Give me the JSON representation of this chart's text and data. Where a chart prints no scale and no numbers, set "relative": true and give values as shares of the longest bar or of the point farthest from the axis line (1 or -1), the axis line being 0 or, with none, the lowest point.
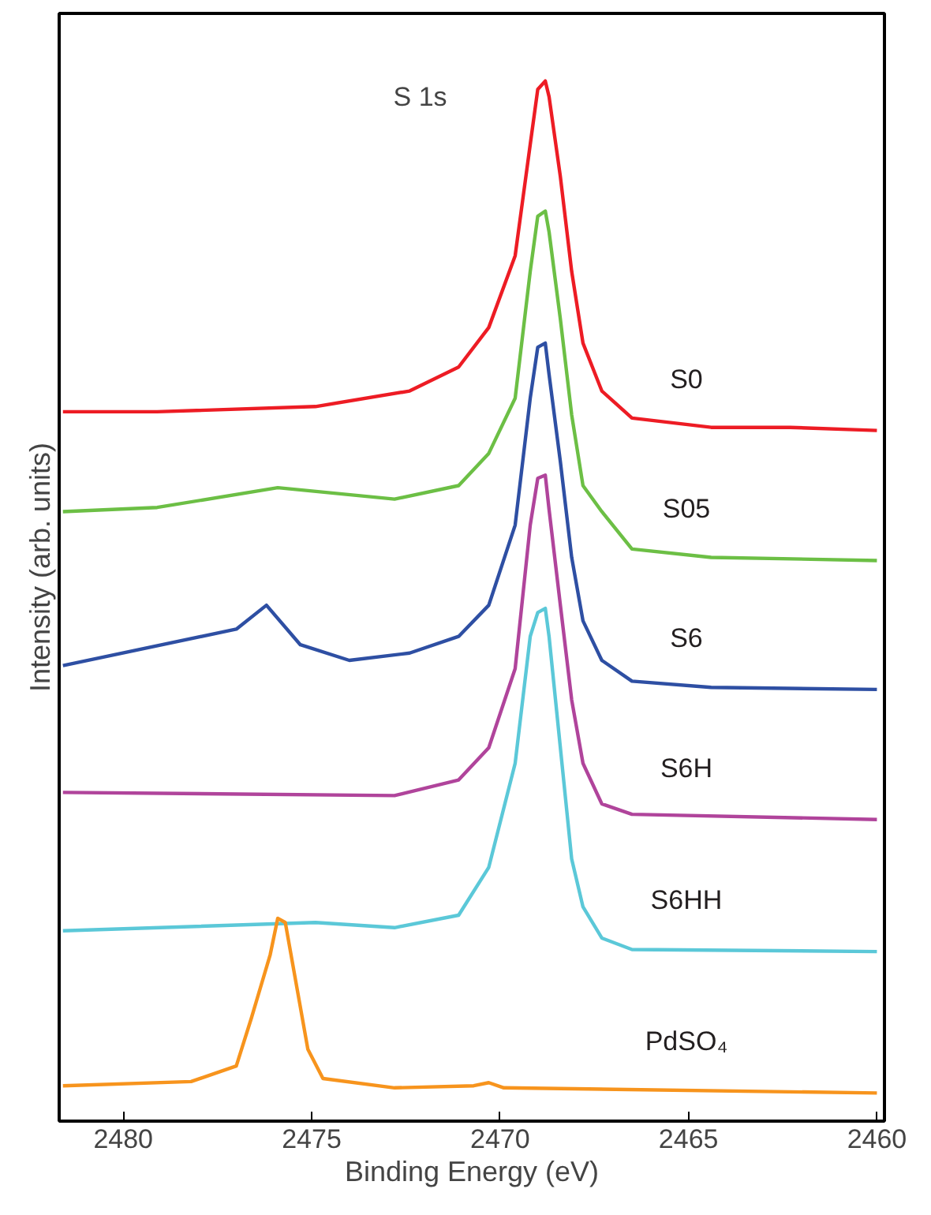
{
  "chart_data": {
    "type": "line",
    "relative": true,
    "xlabel": "Binding Energy (eV)",
    "ylabel": "Intensity (arb. units)",
    "xlim": [
      2481.7,
      2459.8
    ],
    "xticks": [
      2480,
      2475,
      2470,
      2465,
      2460
    ],
    "grid": false,
    "marker": "none",
    "line_style": "solid",
    "annotations": [
      "S 1s"
    ],
    "series": [
      {
        "name": "S0",
        "color": "#ed1c24",
        "x": [
          2481.6,
          2479.1,
          2474.9,
          2472.4,
          2471.1,
          2470.3,
          2469.6,
          2469.2,
          2469.0,
          2468.8,
          2468.7,
          2468.4,
          2468.1,
          2467.8,
          2467.3,
          2466.5,
          2464.4,
          2462.3,
          2460.0
        ],
        "values": [
          0.682,
          0.682,
          0.687,
          0.702,
          0.725,
          0.763,
          0.832,
          0.939,
          0.992,
          1.0,
          0.985,
          0.908,
          0.817,
          0.748,
          0.702,
          0.676,
          0.667,
          0.667,
          0.664
        ]
      },
      {
        "name": "S05",
        "color": "#6cbf45",
        "x": [
          2481.6,
          2479.1,
          2475.9,
          2472.8,
          2471.1,
          2470.3,
          2469.6,
          2469.2,
          2469.0,
          2468.8,
          2468.7,
          2468.4,
          2468.1,
          2467.8,
          2467.3,
          2466.5,
          2464.4,
          2460.0
        ],
        "values": [
          0.586,
          0.59,
          0.609,
          0.598,
          0.611,
          0.642,
          0.695,
          0.817,
          0.87,
          0.875,
          0.855,
          0.771,
          0.679,
          0.611,
          0.586,
          0.55,
          0.542,
          0.539
        ]
      },
      {
        "name": "S6",
        "color": "#2e4fa3",
        "x": [
          2481.6,
          2477.0,
          2476.2,
          2475.3,
          2474.0,
          2472.4,
          2471.1,
          2470.3,
          2469.6,
          2469.2,
          2469.0,
          2468.8,
          2468.7,
          2468.4,
          2468.1,
          2467.8,
          2467.3,
          2466.5,
          2464.4,
          2460.0
        ],
        "values": [
          0.438,
          0.473,
          0.496,
          0.458,
          0.443,
          0.45,
          0.466,
          0.496,
          0.573,
          0.695,
          0.744,
          0.748,
          0.718,
          0.634,
          0.542,
          0.481,
          0.443,
          0.423,
          0.417,
          0.415
        ]
      },
      {
        "name": "S6H",
        "color": "#b0449b",
        "x": [
          2481.6,
          2472.8,
          2471.1,
          2470.3,
          2469.6,
          2469.2,
          2469.0,
          2468.8,
          2468.7,
          2468.4,
          2468.1,
          2467.8,
          2467.3,
          2466.5,
          2460.0
        ],
        "values": [
          0.316,
          0.313,
          0.328,
          0.359,
          0.435,
          0.573,
          0.618,
          0.621,
          0.588,
          0.496,
          0.405,
          0.344,
          0.305,
          0.295,
          0.29
        ]
      },
      {
        "name": "S6HH",
        "color": "#5bc8d8",
        "x": [
          2481.6,
          2474.9,
          2472.8,
          2471.1,
          2470.3,
          2469.6,
          2469.2,
          2469.0,
          2468.8,
          2468.7,
          2468.4,
          2468.1,
          2467.8,
          2467.3,
          2466.5,
          2460.0
        ],
        "values": [
          0.183,
          0.191,
          0.186,
          0.198,
          0.244,
          0.344,
          0.466,
          0.489,
          0.493,
          0.466,
          0.359,
          0.252,
          0.206,
          0.176,
          0.165,
          0.163
        ]
      },
      {
        "name": "PdSO₄",
        "color": "#f7941d",
        "x": [
          2481.6,
          2478.2,
          2477.0,
          2476.6,
          2476.1,
          2475.9,
          2475.7,
          2475.4,
          2475.1,
          2474.7,
          2472.8,
          2470.7,
          2470.3,
          2469.9,
          2460.0
        ],
        "values": [
          0.034,
          0.038,
          0.053,
          0.099,
          0.16,
          0.195,
          0.191,
          0.13,
          0.069,
          0.041,
          0.032,
          0.034,
          0.037,
          0.032,
          0.027
        ]
      }
    ]
  }
}
